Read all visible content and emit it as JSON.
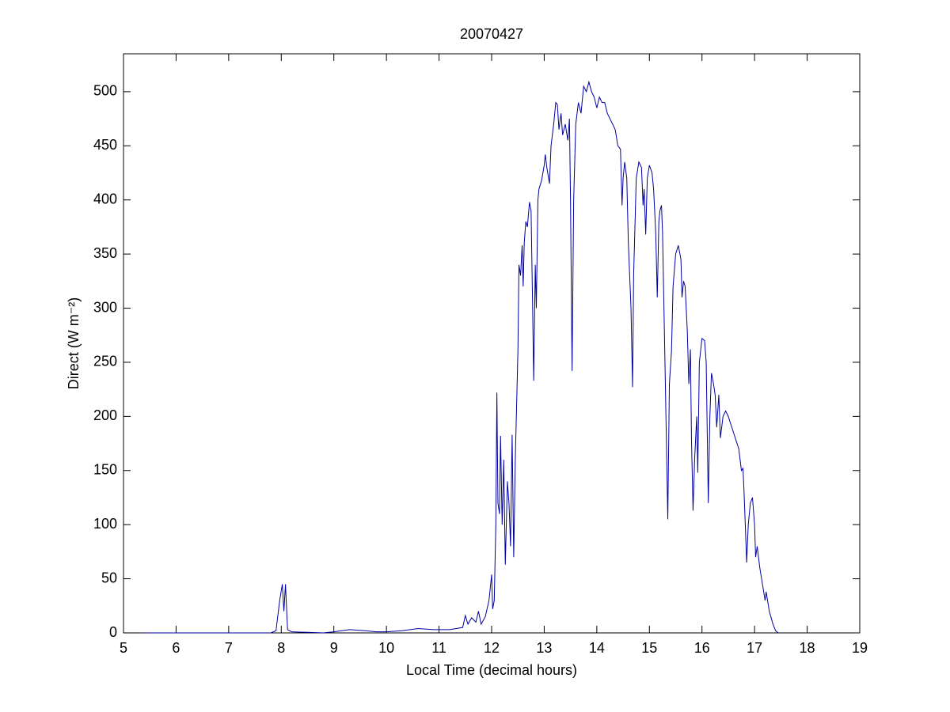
{
  "chart_data": {
    "type": "line",
    "title": "20070427",
    "xlabel": "Local Time (decimal hours)",
    "ylabel": "Direct (W m⁻²)",
    "xlim": [
      5,
      19
    ],
    "xticks": [
      5,
      6,
      7,
      8,
      9,
      10,
      11,
      12,
      13,
      14,
      15,
      16,
      17,
      18,
      19
    ],
    "ylim": [
      0,
      535
    ],
    "yticks": [
      0,
      50,
      100,
      150,
      200,
      250,
      300,
      350,
      400,
      450,
      500
    ],
    "series": [
      {
        "color": "#0000a0",
        "x": [
          5.4,
          7.8,
          7.9,
          7.97,
          8.02,
          8.05,
          8.08,
          8.12,
          8.2,
          8.8,
          9.0,
          9.3,
          9.6,
          9.8,
          10.0,
          10.3,
          10.6,
          10.9,
          11.2,
          11.45,
          11.5,
          11.55,
          11.62,
          11.7,
          11.75,
          11.8,
          11.88,
          11.95,
          12.0,
          12.02,
          12.05,
          12.08,
          12.1,
          12.12,
          12.15,
          12.17,
          12.2,
          12.23,
          12.26,
          12.3,
          12.33,
          12.36,
          12.39,
          12.42,
          12.45,
          12.5,
          12.52,
          12.55,
          12.58,
          12.6,
          12.62,
          12.65,
          12.68,
          12.72,
          12.75,
          12.78,
          12.8,
          12.83,
          12.85,
          12.88,
          12.9,
          12.95,
          13.0,
          13.02,
          13.05,
          13.1,
          13.13,
          13.18,
          13.22,
          13.25,
          13.28,
          13.32,
          13.35,
          13.4,
          13.45,
          13.48,
          13.5,
          13.53,
          13.56,
          13.6,
          13.65,
          13.7,
          13.75,
          13.8,
          13.85,
          13.9,
          13.95,
          14.0,
          14.05,
          14.1,
          14.15,
          14.2,
          14.25,
          14.3,
          14.35,
          14.4,
          14.45,
          14.48,
          14.5,
          14.53,
          14.57,
          14.6,
          14.65,
          14.68,
          14.7,
          14.75,
          14.8,
          14.85,
          14.88,
          14.9,
          14.93,
          14.96,
          15.0,
          15.05,
          15.08,
          15.12,
          15.15,
          15.18,
          15.2,
          15.23,
          15.25,
          15.3,
          15.35,
          15.38,
          15.42,
          15.45,
          15.5,
          15.55,
          15.6,
          15.62,
          15.65,
          15.68,
          15.72,
          15.75,
          15.78,
          15.8,
          15.83,
          15.86,
          15.9,
          15.92,
          15.95,
          16.0,
          16.05,
          16.08,
          16.12,
          16.15,
          16.18,
          16.22,
          16.25,
          16.28,
          16.32,
          16.35,
          16.4,
          16.45,
          16.5,
          16.6,
          16.7,
          16.75,
          16.78,
          16.8,
          16.85,
          16.88,
          16.92,
          16.96,
          17.0,
          17.02,
          17.05,
          17.1,
          17.15,
          17.2,
          17.22,
          17.28,
          17.35,
          17.4,
          17.45
        ],
        "values": [
          0,
          0,
          2,
          30,
          45,
          20,
          45,
          3,
          1,
          0,
          1,
          3,
          2,
          1,
          1,
          2,
          4,
          3,
          3,
          5,
          16,
          8,
          14,
          10,
          20,
          8,
          15,
          30,
          54,
          22,
          30,
          100,
          222,
          120,
          110,
          182,
          100,
          160,
          63,
          140,
          120,
          80,
          183,
          70,
          160,
          260,
          340,
          330,
          358,
          320,
          360,
          380,
          375,
          398,
          390,
          300,
          233,
          340,
          300,
          400,
          410,
          418,
          432,
          442,
          430,
          415,
          450,
          470,
          490,
          488,
          465,
          480,
          460,
          470,
          455,
          475,
          400,
          242,
          400,
          470,
          490,
          480,
          505,
          500,
          509,
          500,
          495,
          485,
          495,
          490,
          490,
          480,
          475,
          470,
          465,
          450,
          447,
          395,
          420,
          435,
          420,
          360,
          300,
          227,
          330,
          420,
          435,
          430,
          395,
          410,
          368,
          420,
          432,
          425,
          410,
          370,
          310,
          380,
          390,
          395,
          370,
          240,
          105,
          230,
          260,
          320,
          350,
          358,
          345,
          310,
          325,
          320,
          280,
          230,
          262,
          180,
          113,
          160,
          200,
          148,
          250,
          272,
          270,
          250,
          120,
          200,
          240,
          230,
          220,
          190,
          220,
          180,
          200,
          205,
          200,
          185,
          170,
          150,
          152,
          130,
          65,
          100,
          120,
          125,
          100,
          70,
          80,
          60,
          45,
          30,
          38,
          20,
          8,
          2,
          0
        ]
      }
    ]
  }
}
